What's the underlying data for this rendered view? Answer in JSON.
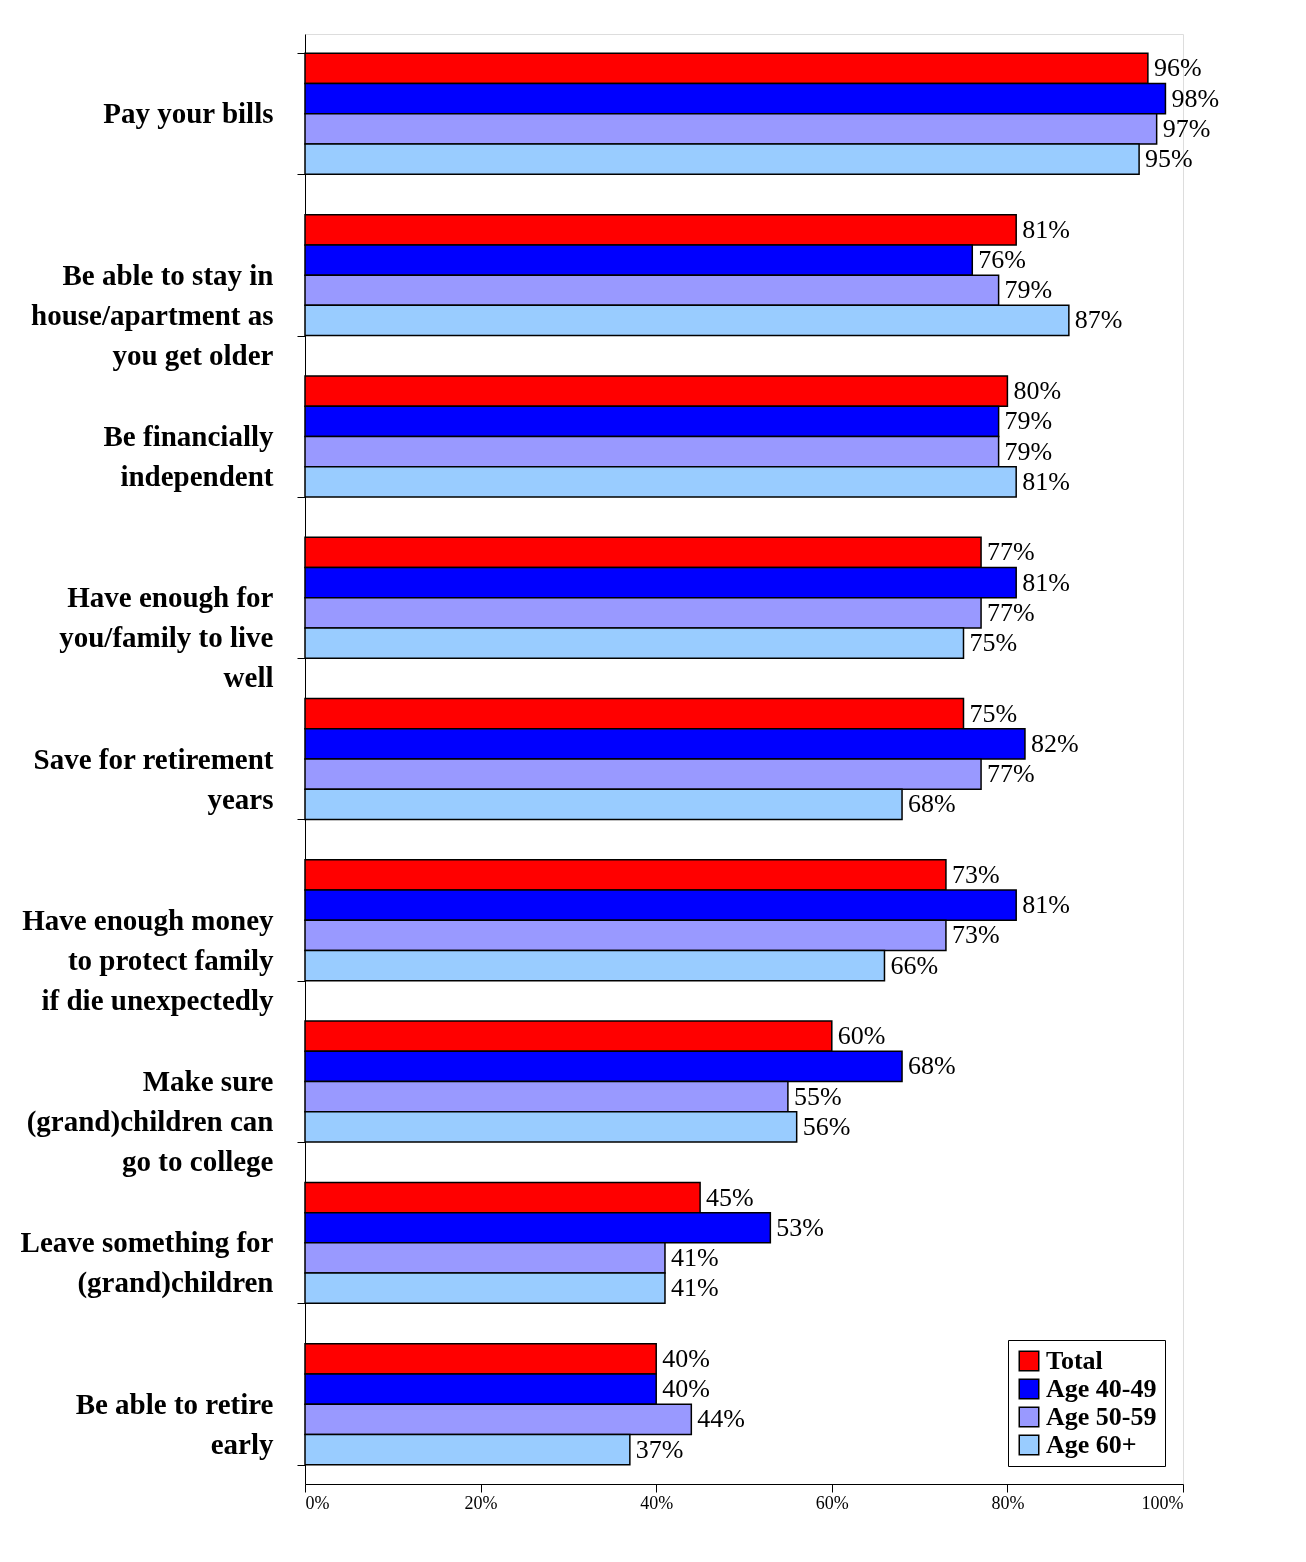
{
  "chart_data": {
    "type": "bar",
    "orientation": "horizontal",
    "categories": [
      "Pay your bills",
      "Be able to stay in house/apartment as you get older",
      "Be financially independent",
      "Have enough for you/family to live well",
      "Save for retirement years",
      "Have enough money to protect family if die unexpectedly",
      "Make sure (grand)children can go to college",
      "Leave something for (grand)children",
      "Be able to retire early"
    ],
    "series": [
      {
        "name": "Total",
        "color": "#ff0000",
        "values": [
          96,
          81,
          80,
          77,
          75,
          73,
          60,
          45,
          40
        ],
        "value_labels": [
          "96%",
          "81%",
          "80%",
          "77%",
          "75%",
          "73%",
          "60%",
          "45%",
          "40%"
        ]
      },
      {
        "name": "Age 40-49",
        "color": "#0000ff",
        "values": [
          98,
          76,
          79,
          81,
          82,
          81,
          68,
          53,
          40
        ],
        "value_labels": [
          "98%",
          "76%",
          "79%",
          "81%",
          "82%",
          "81%",
          "68%",
          "53%",
          "40%"
        ]
      },
      {
        "name": "Age 50-59",
        "color": "#9999ff",
        "values": [
          97,
          79,
          79,
          77,
          77,
          73,
          55,
          41,
          44
        ],
        "value_labels": [
          "97%",
          "79%",
          "79%",
          "77%",
          "77%",
          "73%",
          "55%",
          "41%",
          "44%"
        ]
      },
      {
        "name": "Age 60+",
        "color": "#99ccff",
        "values": [
          95,
          87,
          81,
          75,
          68,
          66,
          56,
          41,
          37
        ],
        "value_labels": [
          "95%",
          "87%",
          "81%",
          "75%",
          "68%",
          "66%",
          "56%",
          "41%",
          "37%"
        ]
      }
    ],
    "xlim": [
      0,
      100
    ],
    "xticks": [
      {
        "value": 0,
        "label": "0%"
      },
      {
        "value": 20,
        "label": "20%"
      },
      {
        "value": 40,
        "label": "40%"
      },
      {
        "value": 60,
        "label": "60%"
      },
      {
        "value": 80,
        "label": "80%"
      },
      {
        "value": 100,
        "label": "100%"
      }
    ],
    "grid": false,
    "legend": "bottom right"
  }
}
